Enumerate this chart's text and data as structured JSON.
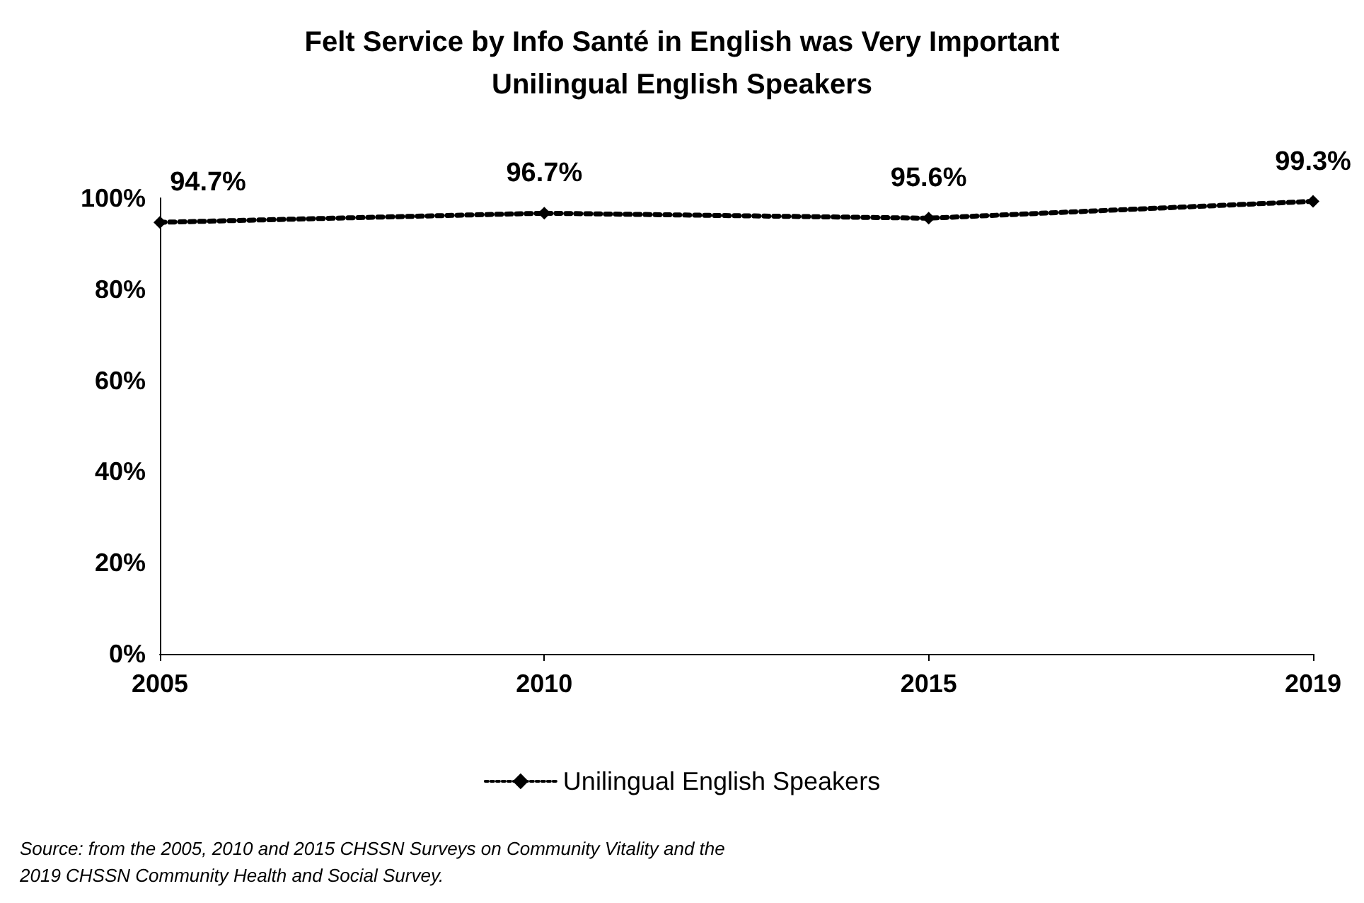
{
  "chart_data": {
    "type": "line",
    "title": "Felt Service by Info Santé in English was Very Important\nUnilingual English Speakers",
    "categories": [
      "2005",
      "2010",
      "2015",
      "2019"
    ],
    "series": [
      {
        "name": "Unilingual English Speakers",
        "color": "#000000",
        "values": [
          94.7,
          96.7,
          95.6,
          99.3
        ],
        "value_labels": [
          "94.7%",
          "96.7%",
          "95.6%",
          "99.3%"
        ]
      }
    ],
    "ylim": [
      0,
      100
    ],
    "yticks": [
      {
        "value": 0,
        "label": "0%"
      },
      {
        "value": 20,
        "label": "20%"
      },
      {
        "value": 40,
        "label": "40%"
      },
      {
        "value": 60,
        "label": "60%"
      },
      {
        "value": 80,
        "label": "80%"
      },
      {
        "value": 100,
        "label": "100%"
      }
    ],
    "grid": false,
    "legend": "bottom",
    "marker": "diamond",
    "line_style": "dotted",
    "annotations": [
      "Source: from the 2005, 2010 and 2015 CHSSN Surveys on Community Vitality and the\n2019 CHSSN Community Health and Social Survey."
    ]
  }
}
